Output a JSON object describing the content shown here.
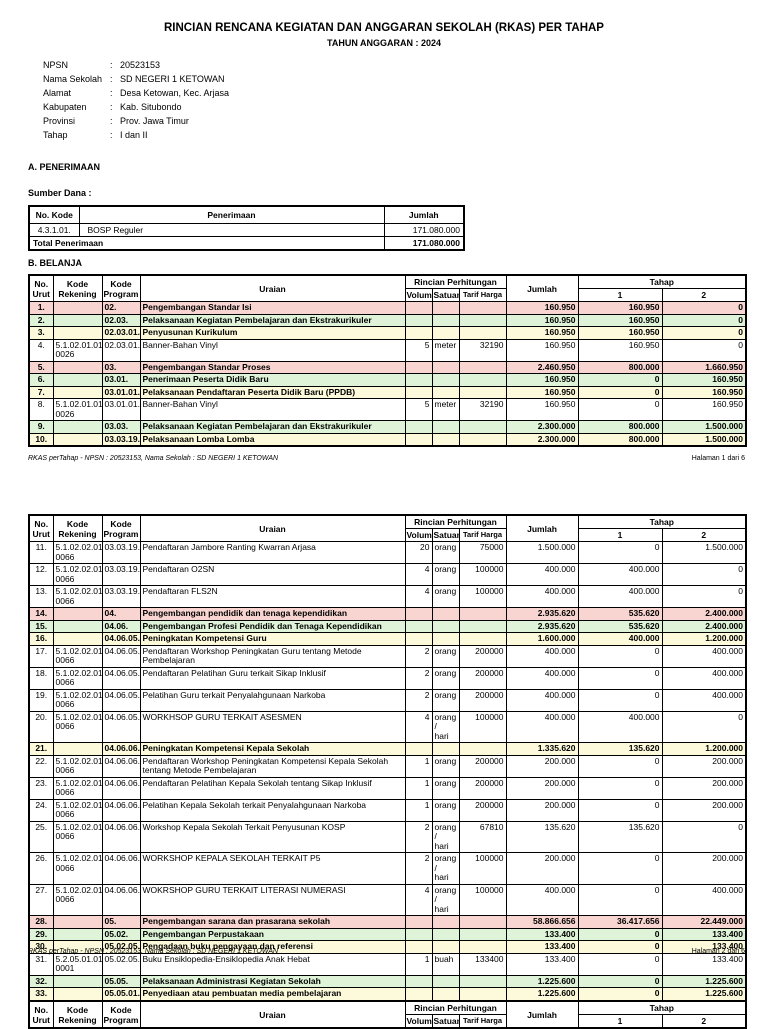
{
  "header": {
    "title": "RINCIAN RENCANA KEGIATAN DAN ANGGARAN SEKOLAH (RKAS) PER TAHAP",
    "subtitle": "TAHUN ANGGARAN : 2024",
    "info": [
      {
        "label": "NPSN",
        "value": "20523153"
      },
      {
        "label": "Nama Sekolah",
        "value": "SD NEGERI 1 KETOWAN"
      },
      {
        "label": "Alamat",
        "value": "Desa Ketowan, Kec. Arjasa"
      },
      {
        "label": "Kabupaten",
        "value": "Kab. Situbondo"
      },
      {
        "label": "Provinsi",
        "value": "Prov. Jawa Timur"
      },
      {
        "label": "Tahap",
        "value": "I dan II"
      }
    ]
  },
  "section_a_heading": "A. PENERIMAAN",
  "sumber_dana_label": "Sumber Dana :",
  "penerimaan": {
    "headers": [
      "No. Kode",
      "Penerimaan",
      "Jumlah"
    ],
    "rows": [
      {
        "kode": "4.3.1.01.",
        "name": "BOSP Reguler",
        "jumlah": "171.080.000"
      }
    ],
    "total_label": "Total Penerimaan",
    "total_value": "171.080.000"
  },
  "section_b_heading": "B. BELANJA",
  "belanja": {
    "header": {
      "no": "No. Urut",
      "rekening": "Kode Rekening",
      "program": "Kode Program",
      "uraian": "Uraian",
      "rincian": "Rincian Perhitungan",
      "volume": "Volume",
      "satuan": "Satuan",
      "tarif": "Tarif Harga",
      "jumlah": "Jumlah",
      "tahap": "Tahap",
      "t1": "1",
      "t2": "2"
    },
    "page1_rows": [
      {
        "no": "1.",
        "rekening": "",
        "program": "02.",
        "uraian": "Pengembangan Standar Isi",
        "volume": "",
        "satuan": "",
        "tarif": "",
        "jumlah": "160.950",
        "tahap1": "160.950",
        "tahap2": "0",
        "color": "pink"
      },
      {
        "no": "2.",
        "rekening": "",
        "program": "02.03.",
        "uraian": "Pelaksanaan Kegiatan Pembelajaran dan Ekstrakurikuler",
        "volume": "",
        "satuan": "",
        "tarif": "",
        "jumlah": "160.950",
        "tahap1": "160.950",
        "tahap2": "0",
        "color": "green"
      },
      {
        "no": "3.",
        "rekening": "",
        "program": "02.03.01.",
        "uraian": "Penyusunan Kurikulum",
        "volume": "",
        "satuan": "",
        "tarif": "",
        "jumlah": "160.950",
        "tahap1": "160.950",
        "tahap2": "0",
        "color": "yellow"
      },
      {
        "no": "4.",
        "rekening": "5.1.02.01.01.\n0026",
        "program": "02.03.01.",
        "uraian": "Banner-Bahan Vinyl",
        "volume": "5",
        "satuan": "meter",
        "tarif": "32190",
        "jumlah": "160.950",
        "tahap1": "160.950",
        "tahap2": "0",
        "color": "white"
      },
      {
        "no": "5.",
        "rekening": "",
        "program": "03.",
        "uraian": "Pengembangan Standar Proses",
        "volume": "",
        "satuan": "",
        "tarif": "",
        "jumlah": "2.460.950",
        "tahap1": "800.000",
        "tahap2": "1.660.950",
        "color": "pink"
      },
      {
        "no": "6.",
        "rekening": "",
        "program": "03.01.",
        "uraian": "Penerimaan Peserta Didik Baru",
        "volume": "",
        "satuan": "",
        "tarif": "",
        "jumlah": "160.950",
        "tahap1": "0",
        "tahap2": "160.950",
        "color": "green"
      },
      {
        "no": "7.",
        "rekening": "",
        "program": "03.01.01.",
        "uraian": "Pelaksanaan Pendaftaran Peserta Didik Baru (PPDB)",
        "volume": "",
        "satuan": "",
        "tarif": "",
        "jumlah": "160.950",
        "tahap1": "0",
        "tahap2": "160.950",
        "color": "yellow"
      },
      {
        "no": "8.",
        "rekening": "5.1.02.01.01.\n0026",
        "program": "03.01.01.",
        "uraian": "Banner-Bahan Vinyl",
        "volume": "5",
        "satuan": "meter",
        "tarif": "32190",
        "jumlah": "160.950",
        "tahap1": "0",
        "tahap2": "160.950",
        "color": "white"
      },
      {
        "no": "9.",
        "rekening": "",
        "program": "03.03.",
        "uraian": "Pelaksanaan Kegiatan Pembelajaran dan Ekstrakurikuler",
        "volume": "",
        "satuan": "",
        "tarif": "",
        "jumlah": "2.300.000",
        "tahap1": "800.000",
        "tahap2": "1.500.000",
        "color": "green"
      },
      {
        "no": "10.",
        "rekening": "",
        "program": "03.03.19.",
        "uraian": "Pelaksanaan Lomba Lomba",
        "volume": "",
        "satuan": "",
        "tarif": "",
        "jumlah": "2.300.000",
        "tahap1": "800.000",
        "tahap2": "1.500.000",
        "color": "yellow"
      }
    ],
    "page2_rows": [
      {
        "no": "11.",
        "rekening": "5.1.02.02.01.\n0066",
        "program": "03.03.19.",
        "uraian": "Pendaftaran Jambore Ranting Kwarran Arjasa",
        "volume": "20",
        "satuan": "orang",
        "tarif": "75000",
        "jumlah": "1.500.000",
        "tahap1": "0",
        "tahap2": "1.500.000",
        "color": "white"
      },
      {
        "no": "12.",
        "rekening": "5.1.02.02.01.\n0066",
        "program": "03.03.19.",
        "uraian": "Pendaftaran O2SN",
        "volume": "4",
        "satuan": "orang",
        "tarif": "100000",
        "jumlah": "400.000",
        "tahap1": "400.000",
        "tahap2": "0",
        "color": "white"
      },
      {
        "no": "13.",
        "rekening": "5.1.02.02.01.\n0066",
        "program": "03.03.19.",
        "uraian": "Pendaftaran FLS2N",
        "volume": "4",
        "satuan": "orang",
        "tarif": "100000",
        "jumlah": "400.000",
        "tahap1": "400.000",
        "tahap2": "0",
        "color": "white"
      },
      {
        "no": "14.",
        "rekening": "",
        "program": "04.",
        "uraian": "Pengembangan pendidik dan tenaga kependidikan",
        "volume": "",
        "satuan": "",
        "tarif": "",
        "jumlah": "2.935.620",
        "tahap1": "535.620",
        "tahap2": "2.400.000",
        "color": "pink"
      },
      {
        "no": "15.",
        "rekening": "",
        "program": "04.06.",
        "uraian": "Pengembangan Profesi Pendidik dan Tenaga Kependidikan",
        "volume": "",
        "satuan": "",
        "tarif": "",
        "jumlah": "2.935.620",
        "tahap1": "535.620",
        "tahap2": "2.400.000",
        "color": "green"
      },
      {
        "no": "16.",
        "rekening": "",
        "program": "04.06.05.",
        "uraian": "Peningkatan Kompetensi Guru",
        "volume": "",
        "satuan": "",
        "tarif": "",
        "jumlah": "1.600.000",
        "tahap1": "400.000",
        "tahap2": "1.200.000",
        "color": "yellow"
      },
      {
        "no": "17.",
        "rekening": "5.1.02.02.01.\n0066",
        "program": "04.06.05.",
        "uraian": "Pendaftaran Workshop Peningkatan Guru tentang Metode Pembelajaran",
        "volume": "2",
        "satuan": "orang",
        "tarif": "200000",
        "jumlah": "400.000",
        "tahap1": "0",
        "tahap2": "400.000",
        "color": "white"
      },
      {
        "no": "18.",
        "rekening": "5.1.02.02.01.\n0066",
        "program": "04.06.05.",
        "uraian": "Pendaftaran Pelatihan Guru terkait Sikap Inklusif",
        "volume": "2",
        "satuan": "orang",
        "tarif": "200000",
        "jumlah": "400.000",
        "tahap1": "0",
        "tahap2": "400.000",
        "color": "white"
      },
      {
        "no": "19.",
        "rekening": "5.1.02.02.01.\n0066",
        "program": "04.06.05.",
        "uraian": "Pelatihan Guru terkait Penyalahgunaan Narkoba",
        "volume": "2",
        "satuan": "orang",
        "tarif": "200000",
        "jumlah": "400.000",
        "tahap1": "0",
        "tahap2": "400.000",
        "color": "white"
      },
      {
        "no": "20.",
        "rekening": "5.1.02.02.01.\n0066",
        "program": "04.06.05.",
        "uraian": "WORKHSOP GURU TERKAIT ASESMEN",
        "volume": "4",
        "satuan": "orang /\nhari",
        "tarif": "100000",
        "jumlah": "400.000",
        "tahap1": "400.000",
        "tahap2": "0",
        "color": "white"
      },
      {
        "no": "21.",
        "rekening": "",
        "program": "04.06.06.",
        "uraian": "Peningkatan Kompetensi Kepala Sekolah",
        "volume": "",
        "satuan": "",
        "tarif": "",
        "jumlah": "1.335.620",
        "tahap1": "135.620",
        "tahap2": "1.200.000",
        "color": "yellow"
      },
      {
        "no": "22.",
        "rekening": "5.1.02.02.01.\n0066",
        "program": "04.06.06.",
        "uraian": "Pendaftaran  Workshop Peningkatan Kompetensi Kepala Sekolah tentang Metode Pembelajaran",
        "volume": "1",
        "satuan": "orang",
        "tarif": "200000",
        "jumlah": "200.000",
        "tahap1": "0",
        "tahap2": "200.000",
        "color": "white"
      },
      {
        "no": "23.",
        "rekening": "5.1.02.02.01.\n0066",
        "program": "04.06.06.",
        "uraian": "Pendaftaran Pelatihan Kepala Sekolah tentang Sikap Inklusif",
        "volume": "1",
        "satuan": "orang",
        "tarif": "200000",
        "jumlah": "200.000",
        "tahap1": "0",
        "tahap2": "200.000",
        "color": "white"
      },
      {
        "no": "24.",
        "rekening": "5.1.02.02.01.\n0066",
        "program": "04.06.06.",
        "uraian": "Pelatihan Kepala Sekolah terkait Penyalahgunaan Narkoba",
        "volume": "1",
        "satuan": "orang",
        "tarif": "200000",
        "jumlah": "200.000",
        "tahap1": "0",
        "tahap2": "200.000",
        "color": "white"
      },
      {
        "no": "25.",
        "rekening": "5.1.02.02.01.\n0066",
        "program": "04.06.06.",
        "uraian": "Workshop Kepala Sekolah Terkait Penyusunan KOSP",
        "volume": "2",
        "satuan": "orang /\nhari",
        "tarif": "67810",
        "jumlah": "135.620",
        "tahap1": "135.620",
        "tahap2": "0",
        "color": "white"
      },
      {
        "no": "26.",
        "rekening": "5.1.02.02.01.\n0066",
        "program": "04.06.06.",
        "uraian": "WORKSHOP KEPALA SEKOLAH TERKAIT P5",
        "volume": "2",
        "satuan": "orang /\nhari",
        "tarif": "100000",
        "jumlah": "200.000",
        "tahap1": "0",
        "tahap2": "200.000",
        "color": "white"
      },
      {
        "no": "27.",
        "rekening": "5.1.02.02.01.\n0066",
        "program": "04.06.06.",
        "uraian": "WOKRSHOP GURU TERKAIT LITERASI NUMERASI",
        "volume": "4",
        "satuan": "orang /\nhari",
        "tarif": "100000",
        "jumlah": "400.000",
        "tahap1": "0",
        "tahap2": "400.000",
        "color": "white"
      },
      {
        "no": "28.",
        "rekening": "",
        "program": "05.",
        "uraian": "Pengembangan sarana dan prasarana sekolah",
        "volume": "",
        "satuan": "",
        "tarif": "",
        "jumlah": "58.866.656",
        "tahap1": "36.417.656",
        "tahap2": "22.449.000",
        "color": "pink"
      },
      {
        "no": "29.",
        "rekening": "",
        "program": "05.02.",
        "uraian": "Pengembangan Perpustakaan",
        "volume": "",
        "satuan": "",
        "tarif": "",
        "jumlah": "133.400",
        "tahap1": "0",
        "tahap2": "133.400",
        "color": "green"
      },
      {
        "no": "30.",
        "rekening": "",
        "program": "05.02.05.",
        "uraian": "Pengadaan buku pengayaan dan referensi",
        "volume": "",
        "satuan": "",
        "tarif": "",
        "jumlah": "133.400",
        "tahap1": "0",
        "tahap2": "133.400",
        "color": "yellow"
      },
      {
        "no": "31.",
        "rekening": "5.2.05.01.01.\n0001",
        "program": "05.02.05.",
        "uraian": "Buku Ensiklopedia-Ensiklopedia Anak Hebat",
        "volume": "1",
        "satuan": "buah",
        "tarif": "133400",
        "jumlah": "133.400",
        "tahap1": "0",
        "tahap2": "133.400",
        "color": "white"
      },
      {
        "no": "32.",
        "rekening": "",
        "program": "05.05.",
        "uraian": "Pelaksanaan Administrasi Kegiatan Sekolah",
        "volume": "",
        "satuan": "",
        "tarif": "",
        "jumlah": "1.225.600",
        "tahap1": "0",
        "tahap2": "1.225.600",
        "color": "green"
      },
      {
        "no": "33.",
        "rekening": "",
        "program": "05.05.01.",
        "uraian": "Penyediaan atau pembuatan media pembelajaran",
        "volume": "",
        "satuan": "",
        "tarif": "",
        "jumlah": "1.225.600",
        "tahap1": "0",
        "tahap2": "1.225.600",
        "color": "yellow"
      }
    ]
  },
  "footers": {
    "page1_left": "RKAS perTahap - NPSN : 20523153, Nama Sekolah : SD NEGERI 1 KETOWAN",
    "page1_right": "Halaman 1 dari 6",
    "page2_left": "RKAS perTahap - NPSN : 20523153, Nama Sekolah : SD NEGERI 1 KETOWAN",
    "page2_right": "Halaman 2 dari 6"
  }
}
